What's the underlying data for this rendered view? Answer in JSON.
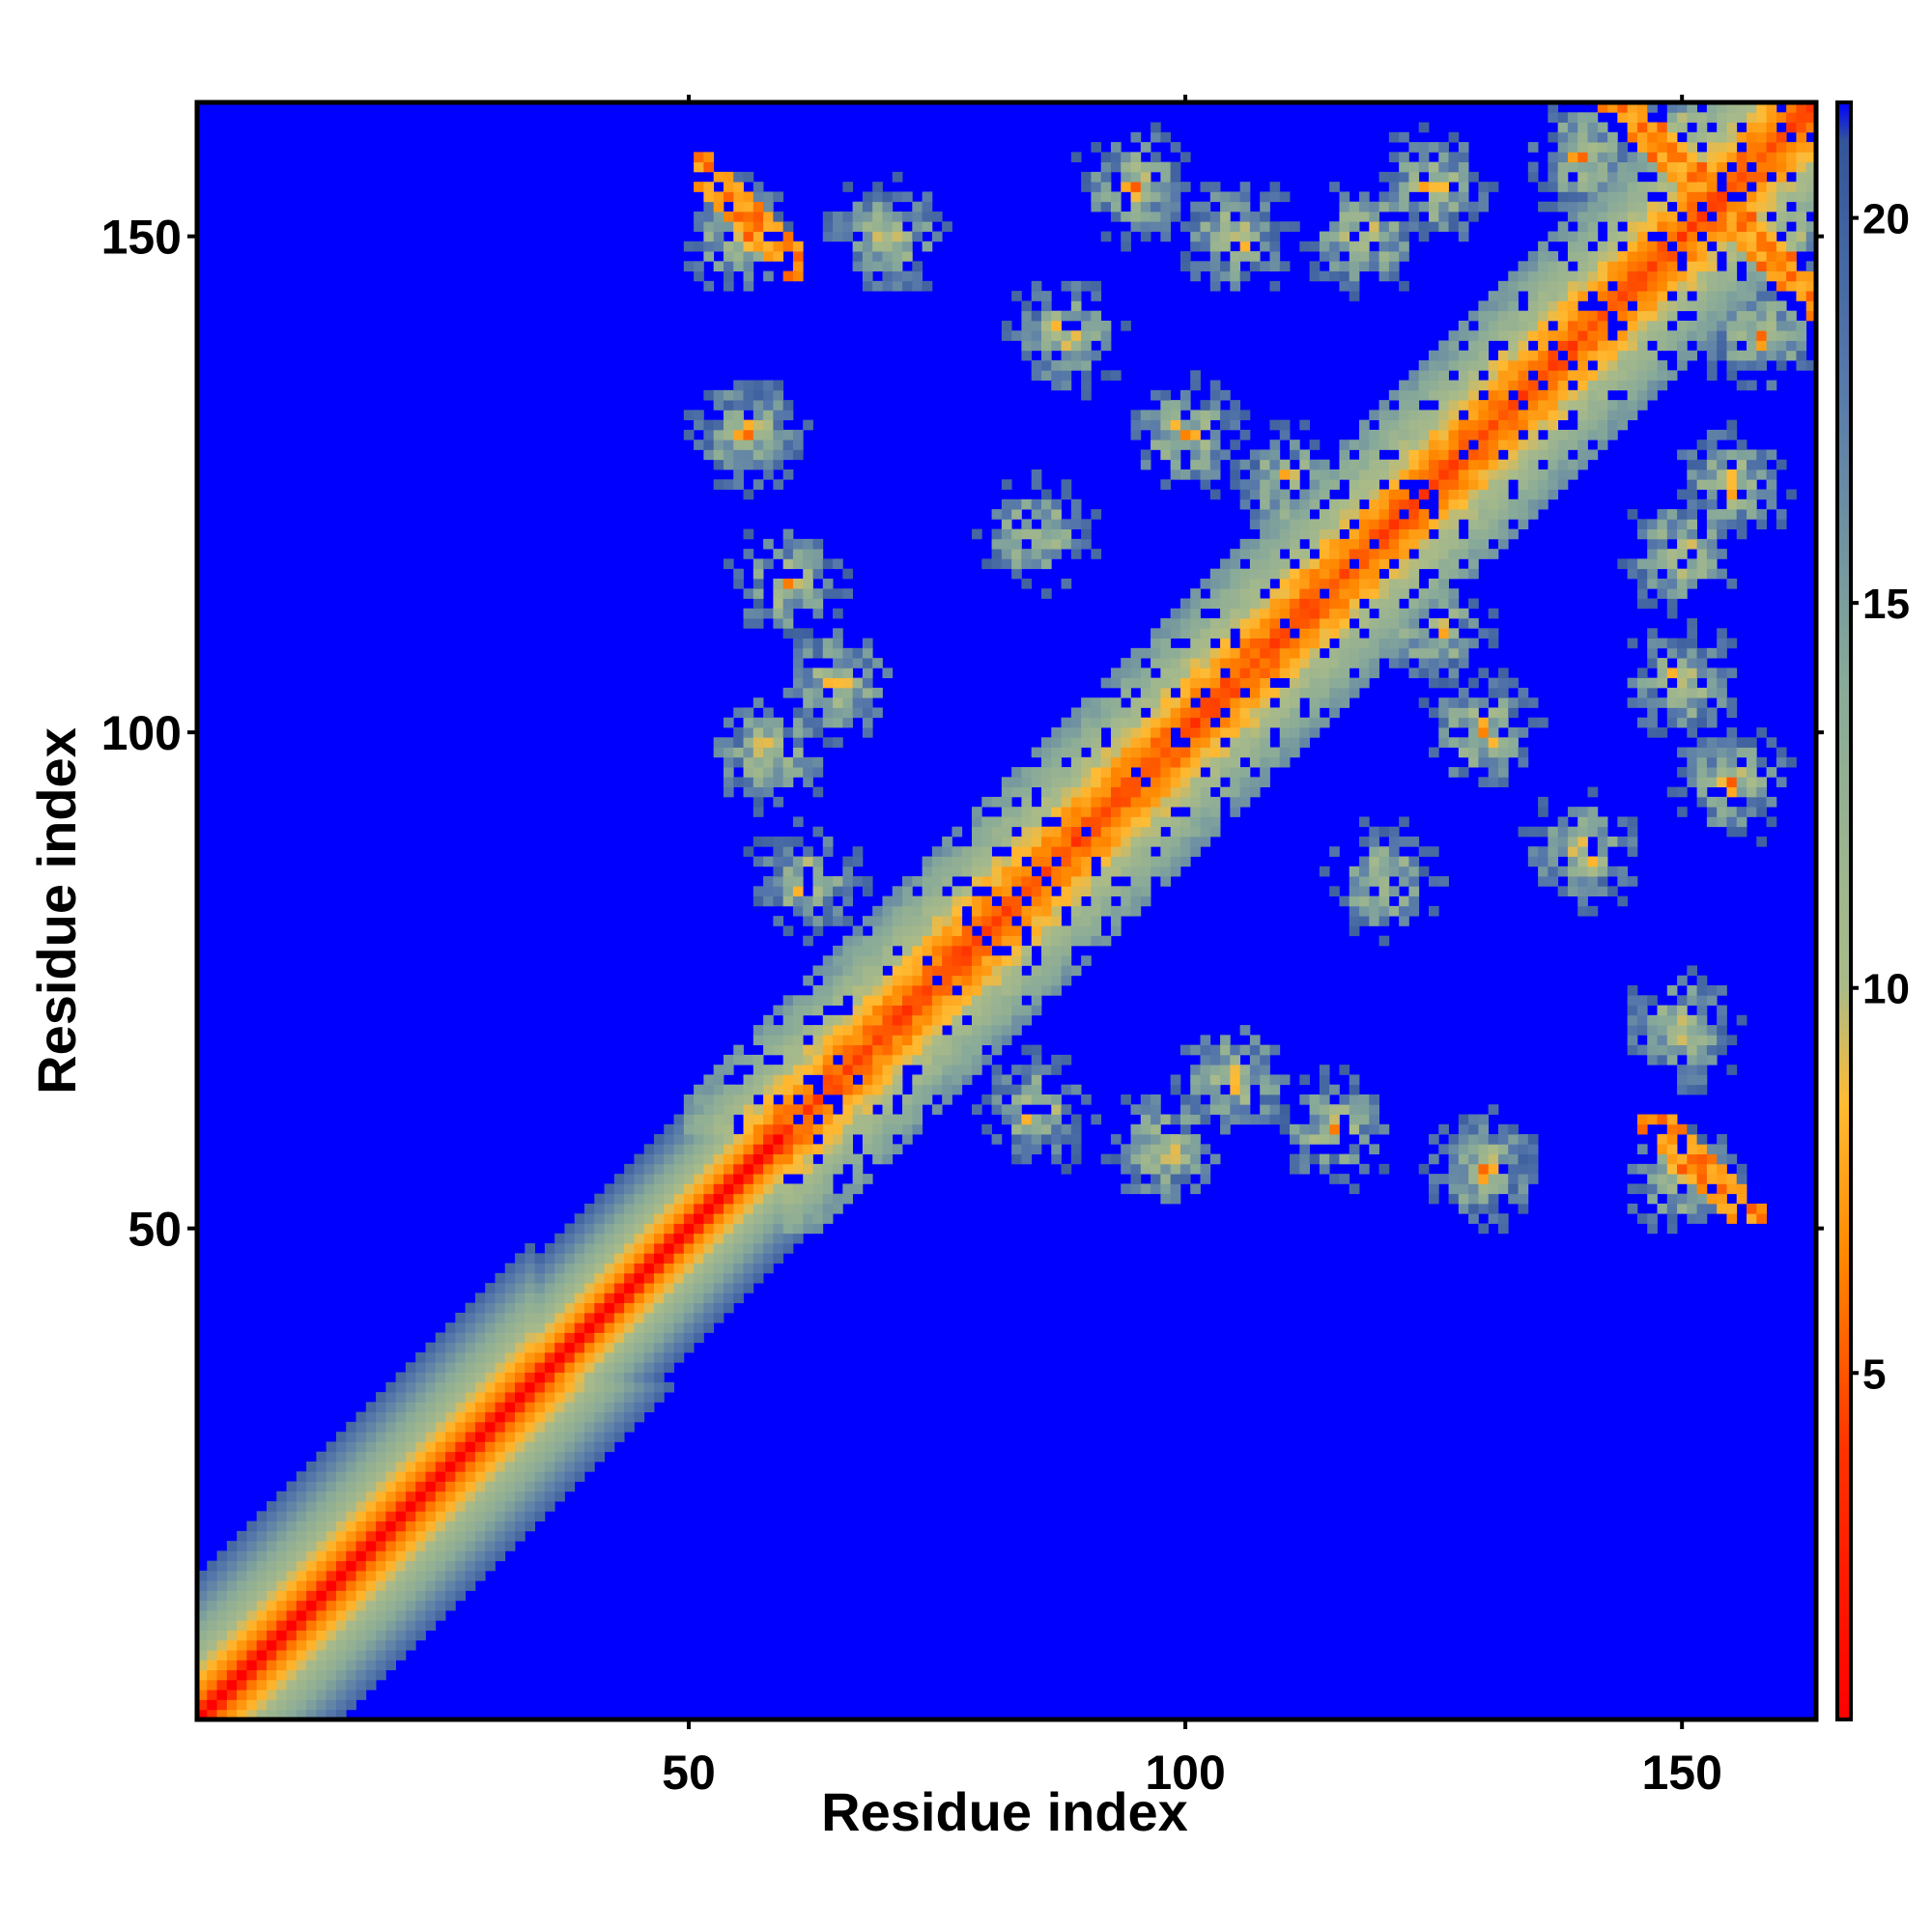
{
  "chart_data": {
    "type": "heatmap",
    "title": "",
    "xlabel": "Residue index",
    "ylabel": "Residue index",
    "n_residues": 163,
    "xlim": [
      1,
      163
    ],
    "ylim": [
      1,
      163
    ],
    "x_ticks": [
      50,
      100,
      150
    ],
    "y_ticks": [
      50,
      100,
      150
    ],
    "colorbar": {
      "ticks": [
        5,
        10,
        15,
        20
      ],
      "range": [
        0.5,
        21.5
      ],
      "stops": [
        {
          "value": 0.5,
          "color": "#ff0000"
        },
        {
          "value": 4,
          "color": "#ff3300"
        },
        {
          "value": 6.5,
          "color": "#ff8800"
        },
        {
          "value": 8.5,
          "color": "#ffbb33"
        },
        {
          "value": 10,
          "color": "#aabb88"
        },
        {
          "value": 14,
          "color": "#88aa99"
        },
        {
          "value": 18,
          "color": "#5577aa"
        },
        {
          "value": 21,
          "color": "#335599"
        }
      ],
      "saturated_color": "#0000ff",
      "saturation_threshold": 20
    },
    "description_of_data": "Symmetric residue-residue distance map (Angstrom); red diagonal band of short distances, orange/green contact clusters, blue for distances >= 20",
    "contact_regions": [
      {
        "i_range": [
          1,
          62
        ],
        "j_range": [
          1,
          62
        ],
        "kind": "diagonal-band"
      },
      {
        "i_range": [
          50,
          62
        ],
        "j_range": [
          95,
          163
        ],
        "kind": "helix-contacts"
      },
      {
        "i_range": [
          62,
          163
        ],
        "j_range": [
          62,
          163
        ],
        "kind": "diagonal-band"
      },
      {
        "i_range": [
          70,
          163
        ],
        "j_range": [
          50,
          62
        ],
        "kind": "off-diagonal-contacts"
      },
      {
        "i_range": [
          120,
          163
        ],
        "j_range": [
          150,
          163
        ],
        "kind": "anti-parallel-contacts"
      },
      {
        "i_range": [
          150,
          163
        ],
        "j_range": [
          50,
          65
        ],
        "kind": "anti-parallel-contacts"
      }
    ]
  }
}
